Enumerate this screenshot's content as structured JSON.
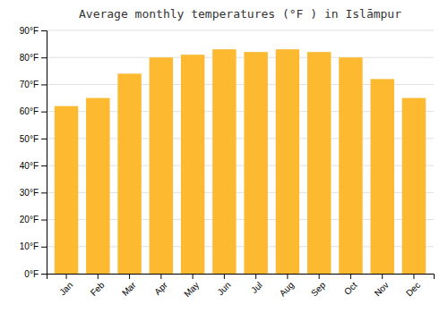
{
  "chart_data": {
    "type": "bar",
    "title": "Average monthly temperatures (°F ) in Islāmpur",
    "categories": [
      "Jan",
      "Feb",
      "Mar",
      "Apr",
      "May",
      "Jun",
      "Jul",
      "Aug",
      "Sep",
      "Oct",
      "Nov",
      "Dec"
    ],
    "values": [
      62,
      65,
      74,
      80,
      81,
      83,
      82,
      83,
      82,
      80,
      72,
      65
    ],
    "color": "#FDB930",
    "ylim": [
      0,
      90
    ],
    "yticks": [
      {
        "value": 0,
        "label": "0°F"
      },
      {
        "value": 10,
        "label": "10°F"
      },
      {
        "value": 20,
        "label": "20°F"
      },
      {
        "value": 30,
        "label": "30°F"
      },
      {
        "value": 40,
        "label": "40°F"
      },
      {
        "value": 50,
        "label": "50°F"
      },
      {
        "value": 60,
        "label": "60°F"
      },
      {
        "value": 70,
        "label": "70°F"
      },
      {
        "value": 80,
        "label": "80°F"
      },
      {
        "value": 90,
        "label": "90°F"
      }
    ],
    "grid": true
  }
}
